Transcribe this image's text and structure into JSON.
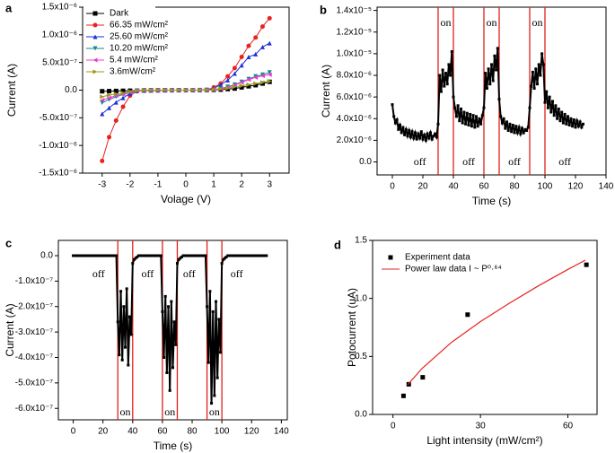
{
  "chart_data": [
    {
      "type": "line",
      "panel": "a",
      "xlabel": "Volage (V)",
      "ylabel": "Current (A)",
      "xlim": [
        -3.7,
        3.7
      ],
      "xticks": [
        -3,
        -2,
        -1,
        0,
        1,
        2,
        3
      ],
      "ylim": [
        -1.5e-06,
        1.5e-06
      ],
      "yticks": [
        {
          "value": -1.5e-06,
          "label": "-1.5x10⁻⁶"
        },
        {
          "value": -1e-06,
          "label": "-1.0x10⁻⁶"
        },
        {
          "value": -5e-07,
          "label": "-5.0x10⁻⁷"
        },
        {
          "value": 0,
          "label": "0.0"
        },
        {
          "value": 5e-07,
          "label": "5.0x10⁻⁷"
        },
        {
          "value": 1e-06,
          "label": "1.0x10⁻⁶"
        },
        {
          "value": 1.5e-06,
          "label": "1.5x10⁻⁶"
        }
      ],
      "legend": "upper left",
      "x": [
        -3,
        -2.75,
        -2.5,
        -2.25,
        -2,
        -1.75,
        -1.5,
        -1.25,
        -1,
        -0.75,
        -0.5,
        -0.25,
        0,
        0.25,
        0.5,
        0.75,
        1,
        1.25,
        1.5,
        1.75,
        2,
        2.25,
        2.5,
        2.75,
        3
      ],
      "series": [
        {
          "name": "Dark",
          "color": "#000000",
          "marker": "square",
          "mode": "lines+markers",
          "values": [
            -2e-08,
            -1.8e-08,
            -1.5e-08,
            -1.2e-08,
            -1e-08,
            -8e-09,
            -6e-09,
            -4e-09,
            -3e-09,
            -2e-09,
            -1e-09,
            0,
            0,
            0,
            1e-09,
            3e-09,
            6e-09,
            1e-08,
            2e-08,
            3e-08,
            5e-08,
            7e-08,
            9e-08,
            1.2e-07,
            1.5e-07
          ]
        },
        {
          "name": "66.35 mW/cm²",
          "color": "#e8221f",
          "marker": "circle",
          "mode": "lines+markers",
          "values": [
            -1.28e-06,
            -8.5e-07,
            -5.5e-07,
            -3e-07,
            -1e-07,
            -2e-08,
            -5e-09,
            0,
            0,
            0,
            0,
            0,
            0,
            0,
            0,
            5e-09,
            5e-08,
            1.2e-07,
            2.5e-07,
            4e-07,
            6e-07,
            8e-07,
            9.5e-07,
            1.15e-06,
            1.3e-06
          ]
        },
        {
          "name": "25.60 mW/cm²",
          "color": "#1f2fd8",
          "marker": "triangle-up",
          "mode": "lines+markers",
          "values": [
            -4.3e-07,
            -3.2e-07,
            -2.2e-07,
            -1.4e-07,
            -6e-08,
            -1e-08,
            -2e-09,
            0,
            0,
            0,
            0,
            0,
            0,
            0,
            0,
            3e-09,
            3e-08,
            1e-07,
            1.8e-07,
            3e-07,
            4.5e-07,
            6e-07,
            6.5e-07,
            7.8e-07,
            8.5e-07
          ]
        },
        {
          "name": "10.20 mW/cm²",
          "color": "#1a8a8a",
          "marker": "triangle-down",
          "mode": "lines+markers",
          "values": [
            -2.3e-07,
            -1.7e-07,
            -1.2e-07,
            -8e-08,
            -4e-08,
            -1e-08,
            -2e-09,
            0,
            0,
            0,
            0,
            0,
            0,
            0,
            0,
            2e-09,
            1e-08,
            3e-08,
            6e-08,
            1e-07,
            1.5e-07,
            2e-07,
            2.5e-07,
            2.8e-07,
            3.2e-07
          ]
        },
        {
          "name": "5.4 mW/cm²",
          "color": "#e83bd3",
          "marker": "triangle-left",
          "mode": "lines+markers",
          "values": [
            -1.8e-07,
            -1.4e-07,
            -1e-07,
            -7e-08,
            -3.5e-08,
            -8e-09,
            -2e-09,
            0,
            0,
            0,
            0,
            0,
            0,
            0,
            0,
            2e-09,
            1e-08,
            2.5e-08,
            5e-08,
            9e-08,
            1.4e-07,
            1.9e-07,
            2.3e-07,
            2.6e-07,
            2.8e-07
          ]
        },
        {
          "name": "3.6mW/cm²",
          "color": "#9a9a1a",
          "marker": "triangle-right",
          "mode": "lines+markers",
          "values": [
            -1.2e-07,
            -9e-08,
            -7e-08,
            -5e-08,
            -2.5e-08,
            -6e-09,
            -1e-09,
            0,
            0,
            0,
            0,
            0,
            0,
            0,
            0,
            1e-09,
            8e-09,
            2e-08,
            3.5e-08,
            6e-08,
            8e-08,
            1e-07,
            1.2e-07,
            1.4e-07,
            1.6e-07
          ]
        }
      ]
    },
    {
      "type": "line",
      "panel": "b",
      "xlabel": "Time (s)",
      "ylabel": "Current (A)",
      "xlim": [
        -10,
        140
      ],
      "xticks": [
        0,
        20,
        40,
        60,
        80,
        100,
        120,
        140
      ],
      "ylim": [
        -1.2e-06,
        1.43e-05
      ],
      "yticks": [
        {
          "value": 0,
          "label": "0.0"
        },
        {
          "value": 2e-06,
          "label": "2.0x10⁻⁶"
        },
        {
          "value": 4e-06,
          "label": "4.0x10⁻⁶"
        },
        {
          "value": 6e-06,
          "label": "6.0x10⁻⁶"
        },
        {
          "value": 8e-06,
          "label": "8.0x10⁻⁶"
        },
        {
          "value": 1e-05,
          "label": "1.0x10⁻⁵"
        },
        {
          "value": 1.2e-05,
          "label": "1.2x10⁻⁵"
        },
        {
          "value": 1.4e-05,
          "label": "1.4x10⁻⁵"
        }
      ],
      "vlines": [
        30,
        40,
        60,
        70,
        90,
        100
      ],
      "vline_color": "#e0201b",
      "annotations": [
        {
          "text": "off",
          "x": 18,
          "position": "bottom"
        },
        {
          "text": "on",
          "x": 35,
          "position": "top"
        },
        {
          "text": "off",
          "x": 50,
          "position": "bottom"
        },
        {
          "text": "on",
          "x": 65,
          "position": "top"
        },
        {
          "text": "off",
          "x": 80,
          "position": "bottom"
        },
        {
          "text": "on",
          "x": 95,
          "position": "top"
        },
        {
          "text": "off",
          "x": 113,
          "position": "bottom"
        }
      ],
      "x": [
        0,
        1,
        2,
        3,
        4,
        5,
        6,
        7,
        8,
        9,
        10,
        11,
        12,
        13,
        14,
        15,
        16,
        17,
        18,
        19,
        20,
        21,
        22,
        23,
        24,
        25,
        26,
        27,
        28,
        29,
        30,
        31,
        32,
        33,
        34,
        35,
        36,
        37,
        38,
        39,
        40,
        41,
        42,
        43,
        44,
        45,
        46,
        47,
        48,
        49,
        50,
        51,
        52,
        53,
        54,
        55,
        56,
        57,
        58,
        59,
        60,
        61,
        62,
        63,
        64,
        65,
        66,
        67,
        68,
        69,
        70,
        71,
        72,
        73,
        74,
        75,
        76,
        77,
        78,
        79,
        80,
        81,
        82,
        83,
        84,
        85,
        86,
        87,
        88,
        89,
        90,
        91,
        92,
        93,
        94,
        95,
        96,
        97,
        98,
        99,
        100,
        101,
        102,
        103,
        104,
        105,
        106,
        107,
        108,
        109,
        110,
        111,
        112,
        113,
        114,
        115,
        116,
        117,
        118,
        119,
        120,
        121,
        122,
        123,
        124,
        125
      ],
      "series": [
        {
          "color": "#000000",
          "marker": "square",
          "mode": "lines+markers",
          "values": [
            5.3e-06,
            4.2e-06,
            3.6e-06,
            3.9e-06,
            3e-06,
            3.4e-06,
            2.7e-06,
            3.2e-06,
            2.5e-06,
            3e-06,
            2.4e-06,
            2.9e-06,
            2.3e-06,
            2.8e-06,
            2.2e-06,
            2.7e-06,
            2.1e-06,
            2.6e-06,
            2.2e-06,
            2.8e-06,
            2.1e-06,
            2.5e-06,
            2e-06,
            2.6e-06,
            2.2e-06,
            2.7e-06,
            2.1e-06,
            2.4e-06,
            2.6e-06,
            2.3e-06,
            3.5e-06,
            8e-06,
            6.5e-06,
            8.5e-06,
            7e-06,
            8.2e-06,
            7.2e-06,
            9e-06,
            8e-06,
            1.02e-05,
            6e-06,
            5e-06,
            4.2e-06,
            5.2e-06,
            3.8e-06,
            4.9e-06,
            3.6e-06,
            4.6e-06,
            3.5e-06,
            4.5e-06,
            3.4e-06,
            4.4e-06,
            3.3e-06,
            4.3e-06,
            3.2e-06,
            4.2e-06,
            3.3e-06,
            4e-06,
            3.5e-06,
            4.3e-06,
            5e-06,
            8.2e-06,
            6.8e-06,
            8.6e-06,
            7.2e-06,
            9e-06,
            7.5e-06,
            9.8e-06,
            8.5e-06,
            1.05e-05,
            5.8e-06,
            4.2e-06,
            3.6e-06,
            4e-06,
            3.1e-06,
            3.7e-06,
            2.9e-06,
            3.5e-06,
            2.8e-06,
            3.4e-06,
            2.7e-06,
            3.3e-06,
            2.7e-06,
            3.2e-06,
            2.6e-06,
            3.1e-06,
            2.7e-06,
            3e-06,
            2.9e-06,
            3.2e-06,
            5e-06,
            7e-06,
            8.3e-06,
            6.8e-06,
            8.6e-06,
            7.2e-06,
            9e-06,
            8e-06,
            1e-05,
            9e-06,
            5.5e-06,
            6.5e-06,
            5e-06,
            6e-06,
            4.6e-06,
            5.6e-06,
            4.3e-06,
            5.2e-06,
            4e-06,
            4.9e-06,
            3.8e-06,
            4.6e-06,
            3.6e-06,
            4.4e-06,
            3.5e-06,
            4.2e-06,
            3.4e-06,
            4e-06,
            3.3e-06,
            3.9e-06,
            3.2e-06,
            3.8e-06,
            3.3e-06,
            3.7e-06,
            3.2e-06,
            3.5e-06
          ]
        }
      ]
    },
    {
      "type": "line",
      "panel": "c",
      "xlabel": "Time (s)",
      "ylabel": "Current (A)",
      "xlim": [
        -10,
        144
      ],
      "xticks": [
        0,
        20,
        40,
        60,
        80,
        100,
        120,
        140
      ],
      "ylim": [
        -6.45e-07,
        6e-08
      ],
      "yticks": [
        {
          "value": -6e-07,
          "label": "-6.0x10⁻⁷"
        },
        {
          "value": -5e-07,
          "label": "-5.0x10⁻⁷"
        },
        {
          "value": -4e-07,
          "label": "-4.0x10⁻⁷"
        },
        {
          "value": -3e-07,
          "label": "-3.0x10⁻⁷"
        },
        {
          "value": -2e-07,
          "label": "-2.0x10⁻⁷"
        },
        {
          "value": -1e-07,
          "label": "-1.0x10⁻⁷"
        },
        {
          "value": 0,
          "label": "0.0"
        }
      ],
      "vlines": [
        30,
        40,
        60,
        70,
        90,
        100
      ],
      "vline_color": "#e0201b",
      "annotations": [
        {
          "text": "off",
          "x": 17,
          "position": "top"
        },
        {
          "text": "on",
          "x": 35,
          "position": "bottom"
        },
        {
          "text": "off",
          "x": 50,
          "position": "top"
        },
        {
          "text": "on",
          "x": 65,
          "position": "bottom"
        },
        {
          "text": "off",
          "x": 78,
          "position": "top"
        },
        {
          "text": "on",
          "x": 95,
          "position": "bottom"
        },
        {
          "text": "off",
          "x": 110,
          "position": "top"
        }
      ],
      "x": [
        0,
        1,
        2,
        3,
        4,
        5,
        6,
        7,
        8,
        9,
        10,
        11,
        12,
        13,
        14,
        15,
        16,
        17,
        18,
        19,
        20,
        21,
        22,
        23,
        24,
        25,
        26,
        27,
        28,
        29,
        30,
        31,
        32,
        33,
        34,
        35,
        36,
        37,
        38,
        39,
        40,
        41,
        42,
        43,
        44,
        45,
        46,
        47,
        48,
        49,
        50,
        51,
        52,
        53,
        54,
        55,
        56,
        57,
        58,
        59,
        60,
        61,
        62,
        63,
        64,
        65,
        66,
        67,
        68,
        69,
        70,
        71,
        72,
        73,
        74,
        75,
        76,
        77,
        78,
        79,
        80,
        81,
        82,
        83,
        84,
        85,
        86,
        87,
        88,
        89,
        90,
        91,
        92,
        93,
        94,
        95,
        96,
        97,
        98,
        99,
        100,
        101,
        102,
        103,
        104,
        105,
        106,
        107,
        108,
        109,
        110,
        111,
        112,
        113,
        114,
        115,
        116,
        117,
        118,
        119,
        120,
        121,
        122,
        123,
        124,
        125,
        126,
        127,
        128,
        129,
        130
      ],
      "series": [
        {
          "color": "#000000",
          "marker": "square",
          "mode": "lines+markers",
          "values": [
            0,
            0,
            0,
            0,
            0,
            0,
            0,
            0,
            0,
            0,
            0,
            0,
            0,
            0,
            0,
            0,
            0,
            0,
            0,
            0,
            0,
            0,
            0,
            0,
            0,
            0,
            0,
            0,
            0,
            0,
            -2.6e-07,
            -3.9e-07,
            -1.4e-07,
            -4.1e-07,
            -2e-07,
            -3.6e-07,
            -1.3e-07,
            -4.3e-07,
            -2.4e-07,
            -3.1e-07,
            -3e-08,
            -1.5e-08,
            -1e-08,
            -5e-09,
            0,
            0,
            0,
            0,
            0,
            0,
            0,
            0,
            0,
            0,
            0,
            0,
            0,
            0,
            0,
            0,
            -2.2e-07,
            -4e-07,
            -1.6e-07,
            -4.6e-07,
            -2e-07,
            -5.3e-07,
            -1.8e-07,
            -4.4e-07,
            -2.6e-07,
            -3.5e-07,
            -3e-08,
            -1.5e-08,
            -1e-08,
            -5e-09,
            0,
            0,
            0,
            0,
            0,
            0,
            0,
            0,
            0,
            0,
            0,
            0,
            0,
            0,
            0,
            0,
            -2e-07,
            -4.2e-07,
            -1.4e-07,
            -5.8e-07,
            -2.2e-07,
            -5.5e-07,
            -1.8e-07,
            -4.8e-07,
            -2.5e-07,
            -3.8e-07,
            -3e-08,
            -1.5e-08,
            -1e-08,
            -5e-09,
            0,
            0,
            0,
            0,
            0,
            0,
            0,
            0,
            0,
            0,
            0,
            0,
            0,
            0,
            0,
            0,
            0,
            0,
            0,
            0,
            0,
            0,
            0,
            0,
            0,
            0,
            0
          ]
        }
      ]
    },
    {
      "type": "scatter",
      "panel": "d",
      "xlabel": "Light intensity (mW/cm²)",
      "ylabel": "Potocurrent (uA)",
      "xlim": [
        -7,
        70
      ],
      "xticks": [
        0,
        30,
        60
      ],
      "ylim": [
        0,
        1.5
      ],
      "yticks": [
        {
          "value": 0,
          "label": "0.0"
        },
        {
          "value": 0.5,
          "label": "0.5"
        },
        {
          "value": 1,
          "label": "1.0"
        },
        {
          "value": 1.5,
          "label": "1.5"
        }
      ],
      "legend": "upper left",
      "series": [
        {
          "name": "Experiment data",
          "color": "#000000",
          "marker": "square",
          "mode": "markers",
          "x": [
            3.6,
            5.4,
            10.2,
            25.6,
            66.35
          ],
          "values": [
            0.16,
            0.26,
            0.32,
            0.86,
            1.29
          ]
        },
        {
          "name": "Power law data I ~ P⁰·⁶⁴",
          "color": "#e8221f",
          "mode": "lines",
          "x": [
            5,
            10,
            20,
            30,
            40,
            50,
            60,
            66
          ],
          "values": [
            0.255,
            0.397,
            0.62,
            0.8,
            0.96,
            1.11,
            1.25,
            1.33
          ]
        }
      ]
    }
  ]
}
